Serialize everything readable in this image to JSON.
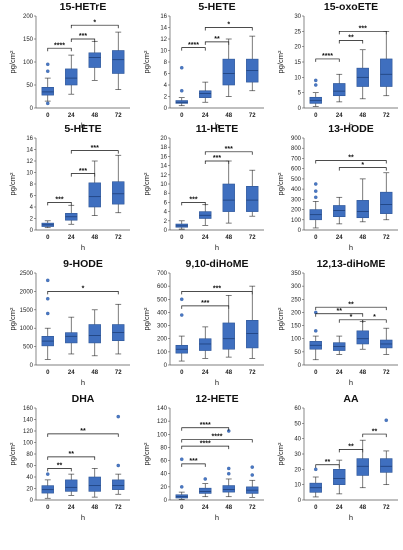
{
  "figure": {
    "xlabel": "h",
    "ylabel": "pg/cm²",
    "box_color": "#3f6fbf",
    "box_edge": "#2d5596",
    "outlier_color": "#4a78c4",
    "bracket_color": "#111111"
  },
  "chart_data": [
    {
      "type": "box",
      "title": "15-HETrE",
      "xlabel": "h",
      "ylabel": "pg/cm²",
      "categories": [
        "0",
        "24",
        "48",
        "72"
      ],
      "ylim": [
        0,
        200
      ],
      "yticks": [
        "0",
        "50",
        "100",
        "150",
        "200"
      ],
      "boxes": [
        {
          "min": 15,
          "q1": 28,
          "median": 35,
          "q3": 45,
          "max": 65,
          "outliers": [
            80,
            95,
            10
          ]
        },
        {
          "min": 30,
          "q1": 50,
          "median": 65,
          "q3": 85,
          "max": 115,
          "outliers": []
        },
        {
          "min": 60,
          "q1": 88,
          "median": 110,
          "q3": 120,
          "max": 145,
          "outliers": []
        },
        {
          "min": 40,
          "q1": 75,
          "median": 105,
          "q3": 125,
          "max": 165,
          "outliers": []
        }
      ],
      "brackets": [
        {
          "from": 0,
          "to": 1,
          "label": "****",
          "y": 130
        },
        {
          "from": 1,
          "to": 2,
          "label": "***",
          "y": 150
        },
        {
          "from": 1,
          "to": 3,
          "label": "*",
          "y": 180
        }
      ]
    },
    {
      "type": "box",
      "title": "5-HETE",
      "xlabel": "h",
      "ylabel": "pg/cm²",
      "categories": [
        "0",
        "24",
        "48",
        "72"
      ],
      "ylim": [
        0,
        16
      ],
      "yticks": [
        "0",
        "2",
        "4",
        "6",
        "8",
        "10",
        "12",
        "14",
        "16"
      ],
      "boxes": [
        {
          "min": 0.4,
          "q1": 0.8,
          "median": 1.0,
          "q3": 1.3,
          "max": 1.8,
          "outliers": [
            7.0,
            3.0
          ]
        },
        {
          "min": 1.0,
          "q1": 1.8,
          "median": 2.5,
          "q3": 3.0,
          "max": 4.5,
          "outliers": []
        },
        {
          "min": 2.0,
          "q1": 4.0,
          "median": 6.0,
          "q3": 8.5,
          "max": 12.0,
          "outliers": []
        },
        {
          "min": 3.0,
          "q1": 4.5,
          "median": 6.5,
          "q3": 8.5,
          "max": 12.5,
          "outliers": []
        }
      ],
      "brackets": [
        {
          "from": 0,
          "to": 1,
          "label": "****",
          "y": 10.5
        },
        {
          "from": 1,
          "to": 2,
          "label": "**",
          "y": 11.5
        },
        {
          "from": 1,
          "to": 3,
          "label": "*",
          "y": 14.0
        }
      ]
    },
    {
      "type": "box",
      "title": "15-oxoETE",
      "xlabel": "h",
      "ylabel": "pg/cm²",
      "categories": [
        "0",
        "24",
        "48",
        "72"
      ],
      "ylim": [
        0,
        30
      ],
      "yticks": [
        "0",
        "5",
        "10",
        "15",
        "20",
        "25",
        "30"
      ],
      "boxes": [
        {
          "min": 0.5,
          "q1": 1.5,
          "median": 2.5,
          "q3": 3.5,
          "max": 5,
          "outliers": [
            7.5,
            9
          ]
        },
        {
          "min": 2,
          "q1": 4,
          "median": 5.5,
          "q3": 8,
          "max": 11,
          "outliers": []
        },
        {
          "min": 3,
          "q1": 7,
          "median": 10,
          "q3": 13,
          "max": 19,
          "outliers": []
        },
        {
          "min": 4,
          "q1": 7,
          "median": 11,
          "q3": 16,
          "max": 25,
          "outliers": []
        }
      ],
      "brackets": [
        {
          "from": 0,
          "to": 1,
          "label": "****",
          "y": 16
        },
        {
          "from": 1,
          "to": 2,
          "label": "**",
          "y": 22
        },
        {
          "from": 1,
          "to": 3,
          "label": "***",
          "y": 25
        }
      ]
    },
    {
      "type": "box",
      "title": "5-HETE",
      "xlabel": "h",
      "ylabel": "pg/cm²",
      "categories": [
        "0",
        "24",
        "48",
        "72"
      ],
      "ylim": [
        0,
        16
      ],
      "yticks": [
        "0",
        "2",
        "4",
        "6",
        "8",
        "10",
        "12",
        "14",
        "16"
      ],
      "boxes": [
        {
          "min": 0.4,
          "q1": 0.6,
          "median": 0.9,
          "q3": 1.2,
          "max": 1.6,
          "outliers": []
        },
        {
          "min": 1.0,
          "q1": 1.7,
          "median": 2.3,
          "q3": 2.9,
          "max": 4.3,
          "outliers": []
        },
        {
          "min": 2.5,
          "q1": 4.0,
          "median": 5.8,
          "q3": 8.2,
          "max": 12.0,
          "outliers": []
        },
        {
          "min": 3.0,
          "q1": 4.5,
          "median": 6.3,
          "q3": 8.4,
          "max": 13.0,
          "outliers": []
        }
      ],
      "brackets": [
        {
          "from": 0,
          "to": 1,
          "label": "***",
          "y": 4.8
        },
        {
          "from": 1,
          "to": 2,
          "label": "***",
          "y": 9.8
        },
        {
          "from": 1,
          "to": 3,
          "label": "***",
          "y": 13.8
        }
      ]
    },
    {
      "type": "box",
      "title": "11-HETE",
      "xlabel": "h",
      "ylabel": "pg/cm²",
      "categories": [
        "0",
        "24",
        "48",
        "72"
      ],
      "ylim": [
        0,
        20
      ],
      "yticks": [
        "0",
        "2",
        "4",
        "6",
        "8",
        "10",
        "12",
        "14",
        "16",
        "18",
        "20"
      ],
      "boxes": [
        {
          "min": 0.2,
          "q1": 0.6,
          "median": 0.9,
          "q3": 1.3,
          "max": 2.0,
          "outliers": []
        },
        {
          "min": 1.0,
          "q1": 2.5,
          "median": 3.2,
          "q3": 4.0,
          "max": 5.5,
          "outliers": []
        },
        {
          "min": 1.5,
          "q1": 4.0,
          "median": 6.5,
          "q3": 10.0,
          "max": 15.0,
          "outliers": []
        },
        {
          "min": 3.0,
          "q1": 4.0,
          "median": 6.5,
          "q3": 9.5,
          "max": 13.0,
          "outliers": []
        }
      ],
      "brackets": [
        {
          "from": 0,
          "to": 1,
          "label": "***",
          "y": 6
        },
        {
          "from": 1,
          "to": 2,
          "label": "***",
          "y": 15
        },
        {
          "from": 1,
          "to": 3,
          "label": "***",
          "y": 17
        }
      ]
    },
    {
      "type": "box",
      "title": "13-HODE",
      "xlabel": "h",
      "ylabel": "pg/cm²",
      "categories": [
        "0",
        "24",
        "48",
        "72"
      ],
      "ylim": [
        0,
        900
      ],
      "yticks": [
        "0",
        "100",
        "200",
        "300",
        "400",
        "500",
        "600",
        "700",
        "800",
        "900"
      ],
      "boxes": [
        {
          "min": 20,
          "q1": 100,
          "median": 150,
          "q3": 200,
          "max": 280,
          "outliers": [
            450,
            380,
            320
          ]
        },
        {
          "min": 60,
          "q1": 130,
          "median": 190,
          "q3": 240,
          "max": 320,
          "outliers": []
        },
        {
          "min": 80,
          "q1": 120,
          "median": 180,
          "q3": 290,
          "max": 500,
          "outliers": []
        },
        {
          "min": 100,
          "q1": 160,
          "median": 250,
          "q3": 370,
          "max": 560,
          "outliers": []
        }
      ],
      "brackets": [
        {
          "from": 0,
          "to": 3,
          "label": "**",
          "y": 680
        },
        {
          "from": 1,
          "to": 3,
          "label": "*",
          "y": 610
        }
      ]
    },
    {
      "type": "box",
      "title": "9-HODE",
      "xlabel": "h",
      "ylabel": "pg/cm²",
      "categories": [
        "0",
        "24",
        "48",
        "72"
      ],
      "ylim": [
        0,
        2500
      ],
      "yticks": [
        "0",
        "500",
        "1000",
        "1500",
        "2000",
        "2500"
      ],
      "boxes": [
        {
          "min": 150,
          "q1": 520,
          "median": 650,
          "q3": 780,
          "max": 1000,
          "outliers": [
            2300,
            1800,
            1400
          ]
        },
        {
          "min": 300,
          "q1": 600,
          "median": 780,
          "q3": 880,
          "max": 1300,
          "outliers": []
        },
        {
          "min": 250,
          "q1": 600,
          "median": 800,
          "q3": 1100,
          "max": 1500,
          "outliers": []
        },
        {
          "min": 300,
          "q1": 660,
          "median": 880,
          "q3": 1100,
          "max": 1650,
          "outliers": []
        }
      ],
      "brackets": [
        {
          "from": 0,
          "to": 3,
          "label": "*",
          "y": 2000
        }
      ]
    },
    {
      "type": "box",
      "title": "9,10-diHoME",
      "xlabel": "h",
      "ylabel": "pg/cm²",
      "categories": [
        "0",
        "24",
        "48",
        "72"
      ],
      "ylim": [
        0,
        700
      ],
      "yticks": [
        "0",
        "100",
        "200",
        "300",
        "400",
        "500",
        "600",
        "700"
      ],
      "boxes": [
        {
          "min": 30,
          "q1": 90,
          "median": 120,
          "q3": 150,
          "max": 220,
          "outliers": [
            500,
            380
          ]
        },
        {
          "min": 50,
          "q1": 110,
          "median": 160,
          "q3": 200,
          "max": 290,
          "outliers": []
        },
        {
          "min": 60,
          "q1": 120,
          "median": 200,
          "q3": 320,
          "max": 530,
          "outliers": []
        },
        {
          "min": 50,
          "q1": 130,
          "median": 240,
          "q3": 340,
          "max": 600,
          "outliers": []
        }
      ],
      "brackets": [
        {
          "from": 0,
          "to": 2,
          "label": "***",
          "y": 450
        },
        {
          "from": 0,
          "to": 3,
          "label": "***",
          "y": 560
        }
      ]
    },
    {
      "type": "box",
      "title": "12,13-diHoME",
      "xlabel": "h",
      "ylabel": "pg/cm²",
      "categories": [
        "0",
        "24",
        "48",
        "72"
      ],
      "ylim": [
        0,
        350
      ],
      "yticks": [
        "0",
        "50",
        "100",
        "150",
        "200",
        "250",
        "300",
        "350"
      ],
      "boxes": [
        {
          "min": 20,
          "q1": 60,
          "median": 75,
          "q3": 90,
          "max": 110,
          "outliers": [
            200,
            130
          ]
        },
        {
          "min": 40,
          "q1": 55,
          "median": 70,
          "q3": 85,
          "max": 110,
          "outliers": []
        },
        {
          "min": 60,
          "q1": 80,
          "median": 100,
          "q3": 130,
          "max": 165,
          "outliers": []
        },
        {
          "min": 40,
          "q1": 65,
          "median": 80,
          "q3": 95,
          "max": 140,
          "outliers": []
        }
      ],
      "brackets": [
        {
          "from": 0,
          "to": 3,
          "label": "**",
          "y": 220
        },
        {
          "from": 0,
          "to": 2,
          "label": "**",
          "y": 195
        },
        {
          "from": 1,
          "to": 2,
          "label": "*",
          "y": 172
        },
        {
          "from": 2,
          "to": 3,
          "label": "*",
          "y": 172
        }
      ]
    },
    {
      "type": "box",
      "title": "DHA",
      "xlabel": "h",
      "ylabel": "pg/cm²",
      "categories": [
        "0",
        "24",
        "48",
        "72"
      ],
      "ylim": [
        0,
        160
      ],
      "yticks": [
        "0",
        "20",
        "40",
        "60",
        "80",
        "100",
        "120",
        "140",
        "160"
      ],
      "boxes": [
        {
          "min": 3,
          "q1": 12,
          "median": 18,
          "q3": 25,
          "max": 35,
          "outliers": [
            45
          ]
        },
        {
          "min": 8,
          "q1": 15,
          "median": 22,
          "q3": 35,
          "max": 45,
          "outliers": []
        },
        {
          "min": 5,
          "q1": 15,
          "median": 25,
          "q3": 40,
          "max": 55,
          "outliers": []
        },
        {
          "min": 10,
          "q1": 18,
          "median": 25,
          "q3": 35,
          "max": 45,
          "outliers": [
            145,
            60
          ]
        }
      ],
      "brackets": [
        {
          "from": 0,
          "to": 1,
          "label": "**",
          "y": 55
        },
        {
          "from": 0,
          "to": 2,
          "label": "**",
          "y": 75
        },
        {
          "from": 0,
          "to": 3,
          "label": "**",
          "y": 115
        }
      ]
    },
    {
      "type": "box",
      "title": "12-HETE",
      "xlabel": "h",
      "ylabel": "pg/cm²",
      "categories": [
        "0",
        "24",
        "48",
        "72"
      ],
      "ylim": [
        0,
        140
      ],
      "yticks": [
        "0",
        "20",
        "40",
        "60",
        "80",
        "100",
        "120",
        "140"
      ],
      "boxes": [
        {
          "min": 1,
          "q1": 3,
          "median": 5,
          "q3": 8,
          "max": 12,
          "outliers": [
            20,
            62
          ]
        },
        {
          "min": 5,
          "q1": 10,
          "median": 13,
          "q3": 18,
          "max": 25,
          "outliers": [
            32
          ]
        },
        {
          "min": 5,
          "q1": 12,
          "median": 16,
          "q3": 22,
          "max": 32,
          "outliers": [
            40,
            48,
            105
          ]
        },
        {
          "min": 4,
          "q1": 10,
          "median": 15,
          "q3": 20,
          "max": 30,
          "outliers": [
            38,
            50
          ]
        }
      ],
      "brackets": [
        {
          "from": 0,
          "to": 1,
          "label": "***",
          "y": 55
        },
        {
          "from": 0,
          "to": 2,
          "label": "****",
          "y": 82
        },
        {
          "from": 0,
          "to": 3,
          "label": "****",
          "y": 92
        },
        {
          "from": 0,
          "to": 2,
          "label": "****",
          "y": 110
        }
      ]
    },
    {
      "type": "box",
      "title": "AA",
      "xlabel": "h",
      "ylabel": "pg/cm²",
      "categories": [
        "0",
        "24",
        "48",
        "72"
      ],
      "ylim": [
        0,
        60
      ],
      "yticks": [
        "0",
        "10",
        "20",
        "30",
        "40",
        "50",
        "60"
      ],
      "boxes": [
        {
          "min": 2,
          "q1": 5,
          "median": 8,
          "q3": 11,
          "max": 15,
          "outliers": [
            20
          ]
        },
        {
          "min": 4,
          "q1": 10,
          "median": 14,
          "q3": 20,
          "max": 26,
          "outliers": []
        },
        {
          "min": 8,
          "q1": 16,
          "median": 22,
          "q3": 27,
          "max": 39,
          "outliers": []
        },
        {
          "min": 10,
          "q1": 18,
          "median": 22,
          "q3": 27,
          "max": 32,
          "outliers": [
            52
          ]
        }
      ],
      "brackets": [
        {
          "from": 0,
          "to": 1,
          "label": "**",
          "y": 23
        },
        {
          "from": 1,
          "to": 2,
          "label": "**",
          "y": 33
        },
        {
          "from": 2,
          "to": 3,
          "label": "**",
          "y": 43
        }
      ]
    }
  ]
}
